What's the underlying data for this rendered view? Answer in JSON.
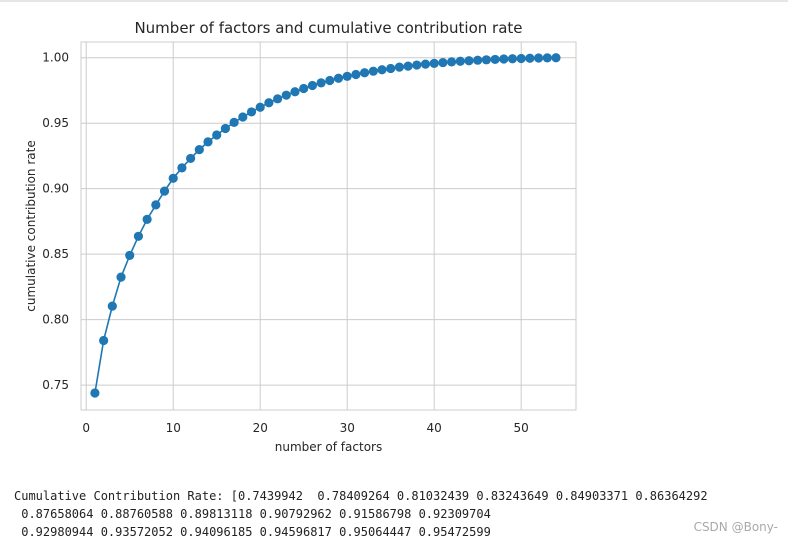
{
  "chart_data": {
    "type": "line",
    "title": "Number of factors and cumulative contribution rate",
    "xlabel": "number of factors",
    "ylabel": "cumulative contribution rate",
    "xlim": [
      -0.6,
      56.3
    ],
    "ylim": [
      0.731,
      1.012
    ],
    "xticks": [
      0,
      10,
      20,
      30,
      40,
      50
    ],
    "yticks": [
      0.75,
      0.8,
      0.85,
      0.9,
      0.95,
      1.0
    ],
    "xtick_labels": [
      "0",
      "10",
      "20",
      "30",
      "40",
      "50"
    ],
    "ytick_labels": [
      "0.75",
      "0.80",
      "0.85",
      "0.90",
      "0.95",
      "1.00"
    ],
    "grid": true,
    "color": "#1f77b4",
    "series": [
      {
        "x": [
          1,
          2,
          3,
          4,
          5,
          6,
          7,
          8,
          9,
          10,
          11,
          12,
          13,
          14,
          15,
          16,
          17,
          18,
          19,
          20,
          21,
          22,
          23,
          24,
          25,
          26,
          27,
          28,
          29,
          30,
          31,
          32,
          33,
          34,
          35,
          36,
          37,
          38,
          39,
          40,
          41,
          42,
          43,
          44,
          45,
          46,
          47,
          48,
          49,
          50,
          51,
          52,
          53,
          54
        ],
        "values": [
          0.7439942,
          0.78409264,
          0.81032439,
          0.83243649,
          0.84903371,
          0.86364292,
          0.87658064,
          0.88760588,
          0.89813118,
          0.90792962,
          0.91586798,
          0.92309704,
          0.92980944,
          0.93572052,
          0.94096185,
          0.94596817,
          0.95064447,
          0.95472599,
          0.9586,
          0.9622,
          0.9656,
          0.9686,
          0.9714,
          0.974,
          0.9765,
          0.9788,
          0.9808,
          0.9826,
          0.9843,
          0.9858,
          0.9872,
          0.9885,
          0.9897,
          0.9908,
          0.9918,
          0.9928,
          0.9936,
          0.9944,
          0.9951,
          0.9957,
          0.9963,
          0.9968,
          0.9973,
          0.9977,
          0.9981,
          0.9984,
          0.9987,
          0.999,
          0.9992,
          0.9994,
          0.9996,
          0.9998,
          0.9999,
          1.0
        ]
      }
    ]
  },
  "output": {
    "line1": "Cumulative Contribution Rate: [0.7439942  0.78409264 0.81032439 0.83243649 0.84903371 0.86364292",
    "line2": " 0.87658064 0.88760588 0.89813118 0.90792962 0.91586798 0.92309704",
    "line3": " 0.92980944 0.93572052 0.94096185 0.94596817 0.95064447 0.95472599"
  },
  "watermark": "CSDN @Bony-"
}
